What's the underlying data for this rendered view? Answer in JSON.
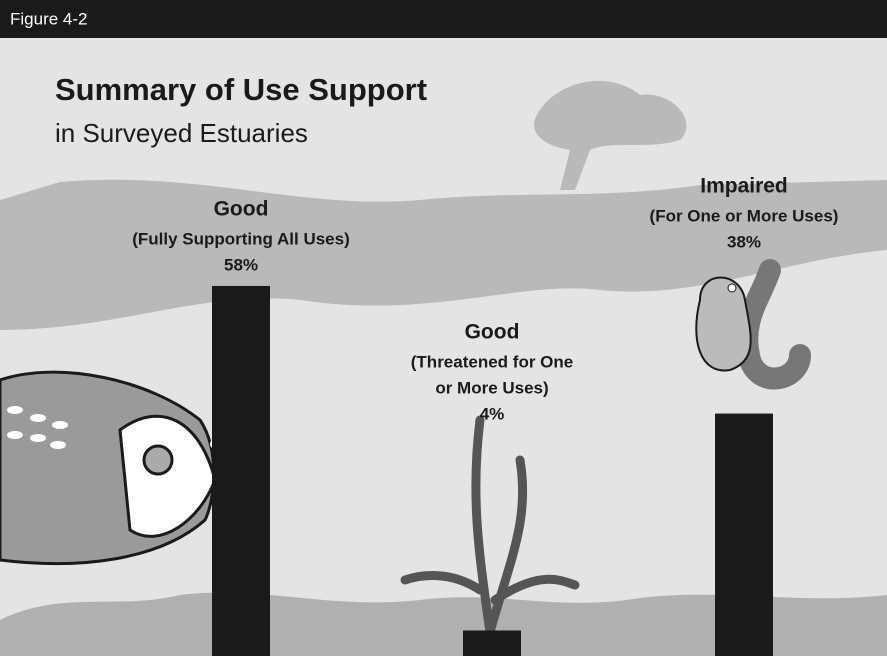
{
  "header": {
    "figure_label": "Figure 4-2"
  },
  "chart_data": {
    "type": "bar",
    "title": "Summary of Use Support",
    "subtitle": "in Surveyed Estuaries",
    "categories": [
      "Good",
      "Good",
      "Impaired"
    ],
    "descriptions": [
      [
        "(Fully Supporting All Uses)"
      ],
      [
        "(Threatened for One",
        "or More Uses)"
      ],
      [
        "(For One or More Uses)"
      ]
    ],
    "values": [
      58,
      4,
      38
    ],
    "value_labels": [
      "58%",
      "4%",
      "38%"
    ],
    "color": "#1a1a1a"
  }
}
